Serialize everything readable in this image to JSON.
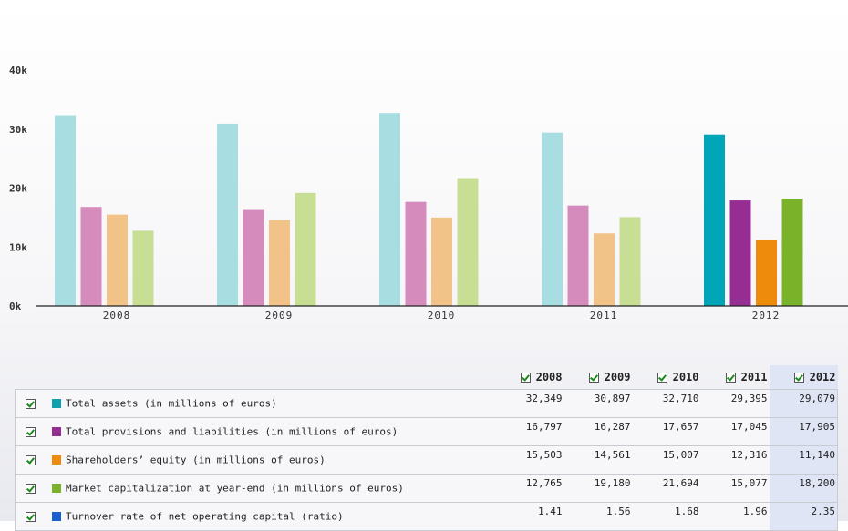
{
  "chart_data": {
    "type": "bar",
    "categories": [
      "2008",
      "2009",
      "2010",
      "2011",
      "2012"
    ],
    "ylim": [
      0,
      40000
    ],
    "yticks": [
      0,
      10000,
      20000,
      30000,
      40000
    ],
    "ytick_labels": [
      "0k",
      "10k",
      "20k",
      "30k",
      "40k"
    ],
    "highlight_category": "2012",
    "series": [
      {
        "name": "Total assets (in millions of euros)",
        "values": [
          32349,
          30897,
          32710,
          29395,
          29079
        ],
        "color": "#00a5b8",
        "light_color": "#a8dde1"
      },
      {
        "name": "Total provisions and liabilities (in millions of euros)",
        "values": [
          16797,
          16287,
          17657,
          17045,
          17905
        ],
        "color": "#962d92",
        "light_color": "#d58bbc"
      },
      {
        "name": "Shareholders' equity (in millions of euros)",
        "values": [
          15503,
          14561,
          15007,
          12316,
          11140
        ],
        "color": "#ee8a0c",
        "light_color": "#f1c389"
      },
      {
        "name": "Market capitalization at year-end (in millions of euros)",
        "values": [
          12765,
          19180,
          21694,
          15077,
          18200
        ],
        "color": "#7ab32a",
        "light_color": "#c9de95"
      }
    ]
  },
  "table": {
    "years": [
      "2008",
      "2009",
      "2010",
      "2011",
      "2012"
    ],
    "rows": [
      {
        "label": "Total assets (in millions of euros)",
        "color": "#0fa0b0",
        "values": [
          "32,349",
          "30,897",
          "32,710",
          "29,395",
          "29,079"
        ]
      },
      {
        "label": "Total provisions and liabilities (in millions of euros)",
        "color": "#962d92",
        "values": [
          "16,797",
          "16,287",
          "17,657",
          "17,045",
          "17,905"
        ]
      },
      {
        "label": "Shareholders’ equity (in millions of euros)",
        "color": "#ee8a0c",
        "values": [
          "15,503",
          "14,561",
          "15,007",
          "12,316",
          "11,140"
        ]
      },
      {
        "label": "Market capitalization at year-end (in millions of euros)",
        "color": "#7ab32a",
        "values": [
          "12,765",
          "19,180",
          "21,694",
          "15,077",
          "18,200"
        ]
      },
      {
        "label": "Turnover rate of net operating capital (ratio)",
        "color": "#1a5fcf",
        "values": [
          "1.41",
          "1.56",
          "1.68",
          "1.96",
          "2.35"
        ]
      }
    ]
  },
  "icons": {
    "checkbox": "checkbox-checked-icon"
  }
}
